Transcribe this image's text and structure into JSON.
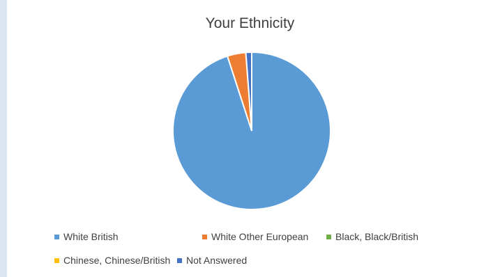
{
  "chart_data": {
    "type": "pie",
    "title": "Your Ethnicity",
    "categories": [
      "White British",
      "White Other European",
      "Black, Black/British",
      "Chinese, Chinese/British",
      "Not Answered"
    ],
    "values": [
      95,
      3.8,
      0,
      0,
      1.2
    ],
    "colors": [
      "#5b9bd5",
      "#ed7d31",
      "#70ad47",
      "#ffc000",
      "#4472c4"
    ],
    "legend_position": "bottom"
  }
}
